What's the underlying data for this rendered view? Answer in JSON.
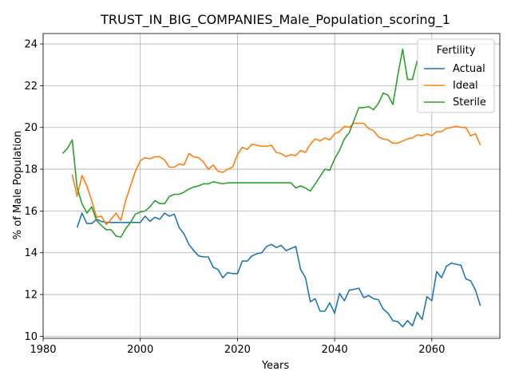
{
  "chart_data": {
    "type": "line",
    "title": "TRUST_IN_BIG_COMPANIES_Male_Population_scoring_1",
    "xlabel": "Years",
    "ylabel": "% of Male Population",
    "xlim": [
      1980,
      2074
    ],
    "ylim": [
      9.9,
      24.5
    ],
    "xticks": [
      1980,
      2000,
      2020,
      2040,
      2060
    ],
    "yticks": [
      10,
      12,
      14,
      16,
      18,
      20,
      22,
      24
    ],
    "grid": true,
    "legend": {
      "title": "Fertility",
      "placement": "top-right"
    },
    "series": [
      {
        "name": "Actual",
        "color": "#1f77b4",
        "x": [
          1987,
          1988,
          1989,
          1990,
          1991,
          1992,
          1993,
          1994,
          1995,
          1996,
          1997,
          1998,
          1999,
          2000,
          2001,
          2002,
          2003,
          2004,
          2005,
          2006,
          2007,
          2008,
          2009,
          2010,
          2011,
          2012,
          2013,
          2014,
          2015,
          2016,
          2017,
          2018,
          2019,
          2020,
          2021,
          2022,
          2023,
          2024,
          2025,
          2026,
          2027,
          2028,
          2029,
          2030,
          2031,
          2032,
          2033,
          2034,
          2035,
          2036,
          2037,
          2038,
          2039,
          2040,
          2041,
          2042,
          2043,
          2044,
          2045,
          2046,
          2047,
          2048,
          2049,
          2050,
          2051,
          2052,
          2053,
          2054,
          2055,
          2056,
          2057,
          2058,
          2059,
          2060,
          2061,
          2062,
          2063,
          2064,
          2065,
          2066,
          2067,
          2068,
          2069,
          2070
        ],
        "values": [
          15.2,
          15.9,
          15.4,
          15.4,
          15.6,
          15.5,
          15.45,
          15.45,
          15.45,
          15.45,
          15.45,
          15.45,
          15.45,
          15.45,
          15.75,
          15.5,
          15.7,
          15.6,
          15.9,
          15.75,
          15.85,
          15.2,
          14.9,
          14.4,
          14.1,
          13.85,
          13.8,
          13.8,
          13.3,
          13.2,
          12.8,
          13.05,
          13.0,
          13.0,
          13.6,
          13.6,
          13.85,
          13.95,
          14.0,
          14.3,
          14.4,
          14.25,
          14.35,
          14.1,
          14.2,
          14.3,
          13.2,
          12.8,
          11.65,
          11.8,
          11.2,
          11.2,
          11.6,
          11.1,
          12.05,
          11.7,
          12.2,
          12.25,
          12.3,
          11.85,
          11.95,
          11.8,
          11.75,
          11.3,
          11.1,
          10.75,
          10.7,
          10.45,
          10.75,
          10.5,
          11.15,
          10.8,
          11.9,
          11.7,
          13.1,
          12.8,
          13.35,
          13.5,
          13.45,
          13.4,
          12.75,
          12.65,
          12.2,
          11.45
        ]
      },
      {
        "name": "Ideal",
        "color": "#ff7f0e",
        "x": [
          1986,
          1987,
          1988,
          1989,
          1990,
          1991,
          1992,
          1993,
          1994,
          1995,
          1996,
          1997,
          1998,
          1999,
          2000,
          2001,
          2002,
          2003,
          2004,
          2005,
          2006,
          2007,
          2008,
          2009,
          2010,
          2011,
          2012,
          2013,
          2014,
          2015,
          2016,
          2017,
          2018,
          2019,
          2020,
          2021,
          2022,
          2023,
          2024,
          2025,
          2026,
          2027,
          2028,
          2029,
          2030,
          2031,
          2032,
          2033,
          2034,
          2035,
          2036,
          2037,
          2038,
          2039,
          2040,
          2041,
          2042,
          2043,
          2044,
          2045,
          2046,
          2047,
          2048,
          2049,
          2050,
          2051,
          2052,
          2053,
          2054,
          2055,
          2056,
          2057,
          2058,
          2059,
          2060,
          2061,
          2062,
          2063,
          2064,
          2065,
          2066,
          2067,
          2068,
          2069,
          2070
        ],
        "values": [
          17.75,
          16.7,
          17.7,
          17.2,
          16.5,
          15.7,
          15.75,
          15.35,
          15.6,
          15.9,
          15.55,
          16.5,
          17.2,
          17.9,
          18.4,
          18.55,
          18.5,
          18.6,
          18.6,
          18.45,
          18.1,
          18.1,
          18.25,
          18.2,
          18.75,
          18.6,
          18.55,
          18.35,
          18.0,
          18.2,
          17.9,
          17.85,
          18.0,
          18.1,
          18.7,
          19.05,
          18.95,
          19.2,
          19.15,
          19.1,
          19.1,
          19.15,
          18.8,
          18.75,
          18.6,
          18.7,
          18.65,
          18.9,
          18.8,
          19.2,
          19.45,
          19.35,
          19.5,
          19.4,
          19.7,
          19.8,
          20.05,
          20.0,
          20.2,
          20.2,
          20.2,
          19.95,
          19.85,
          19.55,
          19.45,
          19.4,
          19.25,
          19.25,
          19.35,
          19.45,
          19.5,
          19.65,
          19.6,
          19.7,
          19.6,
          19.8,
          19.8,
          19.95,
          20.0,
          20.05,
          20.0,
          20.0,
          19.6,
          19.7,
          19.15
        ]
      },
      {
        "name": "Sterile",
        "color": "#2ca02c",
        "x": [
          1984,
          1985,
          1986,
          1987,
          1988,
          1989,
          1990,
          1991,
          1992,
          1993,
          1994,
          1995,
          1996,
          1997,
          1998,
          1999,
          2000,
          2001,
          2002,
          2003,
          2004,
          2005,
          2006,
          2007,
          2008,
          2009,
          2010,
          2011,
          2012,
          2013,
          2014,
          2015,
          2016,
          2017,
          2018,
          2019,
          2020,
          2021,
          2022,
          2023,
          2024,
          2025,
          2026,
          2027,
          2028,
          2029,
          2030,
          2031,
          2032,
          2033,
          2034,
          2035,
          2036,
          2037,
          2038,
          2039,
          2040,
          2041,
          2042,
          2043,
          2044,
          2045,
          2046,
          2047,
          2048,
          2049,
          2050,
          2051,
          2052,
          2053,
          2054,
          2055,
          2056,
          2057
        ],
        "values": [
          18.75,
          19.0,
          19.4,
          17.1,
          16.35,
          15.9,
          16.2,
          15.55,
          15.3,
          15.1,
          15.1,
          14.8,
          14.75,
          15.15,
          15.45,
          15.85,
          15.95,
          16.0,
          16.2,
          16.5,
          16.35,
          16.35,
          16.7,
          16.8,
          16.8,
          16.9,
          17.05,
          17.15,
          17.2,
          17.3,
          17.3,
          17.4,
          17.35,
          17.3,
          17.35,
          17.35,
          17.35,
          17.35,
          17.35,
          17.35,
          17.35,
          17.35,
          17.35,
          17.35,
          17.35,
          17.35,
          17.35,
          17.35,
          17.1,
          17.2,
          17.1,
          16.95,
          17.3,
          17.65,
          18.0,
          17.95,
          18.5,
          18.9,
          19.45,
          19.75,
          20.35,
          20.95,
          20.95,
          21.0,
          20.85,
          21.15,
          21.65,
          21.55,
          21.1,
          22.5,
          23.75,
          22.3,
          22.3,
          23.2
        ]
      }
    ]
  }
}
